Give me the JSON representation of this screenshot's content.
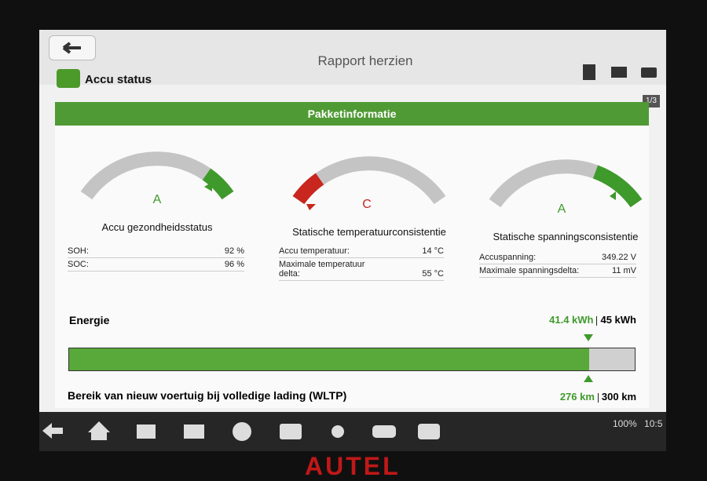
{
  "header": {
    "title": "Rapport herzien",
    "section": "Accu status",
    "page": "1/3"
  },
  "panel": {
    "title": "Pakketinformatie",
    "gauges": [
      {
        "grade": "A",
        "label": "Accu gezondheidsstatus",
        "rows": [
          [
            "SOH:",
            "92 %"
          ],
          [
            "SOC:",
            "96 %"
          ]
        ]
      },
      {
        "grade": "C",
        "label": "Statische temperatuurconsistentie",
        "rows": [
          [
            "Accu temperatuur:",
            "14 °C"
          ],
          [
            "Maximale temperatuur delta:",
            "55 °C"
          ]
        ]
      },
      {
        "grade": "A",
        "label": "Statische spanningsconsistentie",
        "rows": [
          [
            "Accuspanning:",
            "349.22 V"
          ],
          [
            "Maximale spanningsdelta:",
            "11 mV"
          ]
        ]
      }
    ],
    "energy": {
      "label": "Energie",
      "current": "41.4 kWh",
      "total": "45 kWh"
    },
    "range": {
      "label": "Bereik van nieuw voertuig bij volledige lading (WLTP)",
      "current": "276 km",
      "total": "300 km"
    }
  },
  "status_bar": {
    "battery": "100%",
    "time": "10:5"
  },
  "brand": "AUTEL"
}
